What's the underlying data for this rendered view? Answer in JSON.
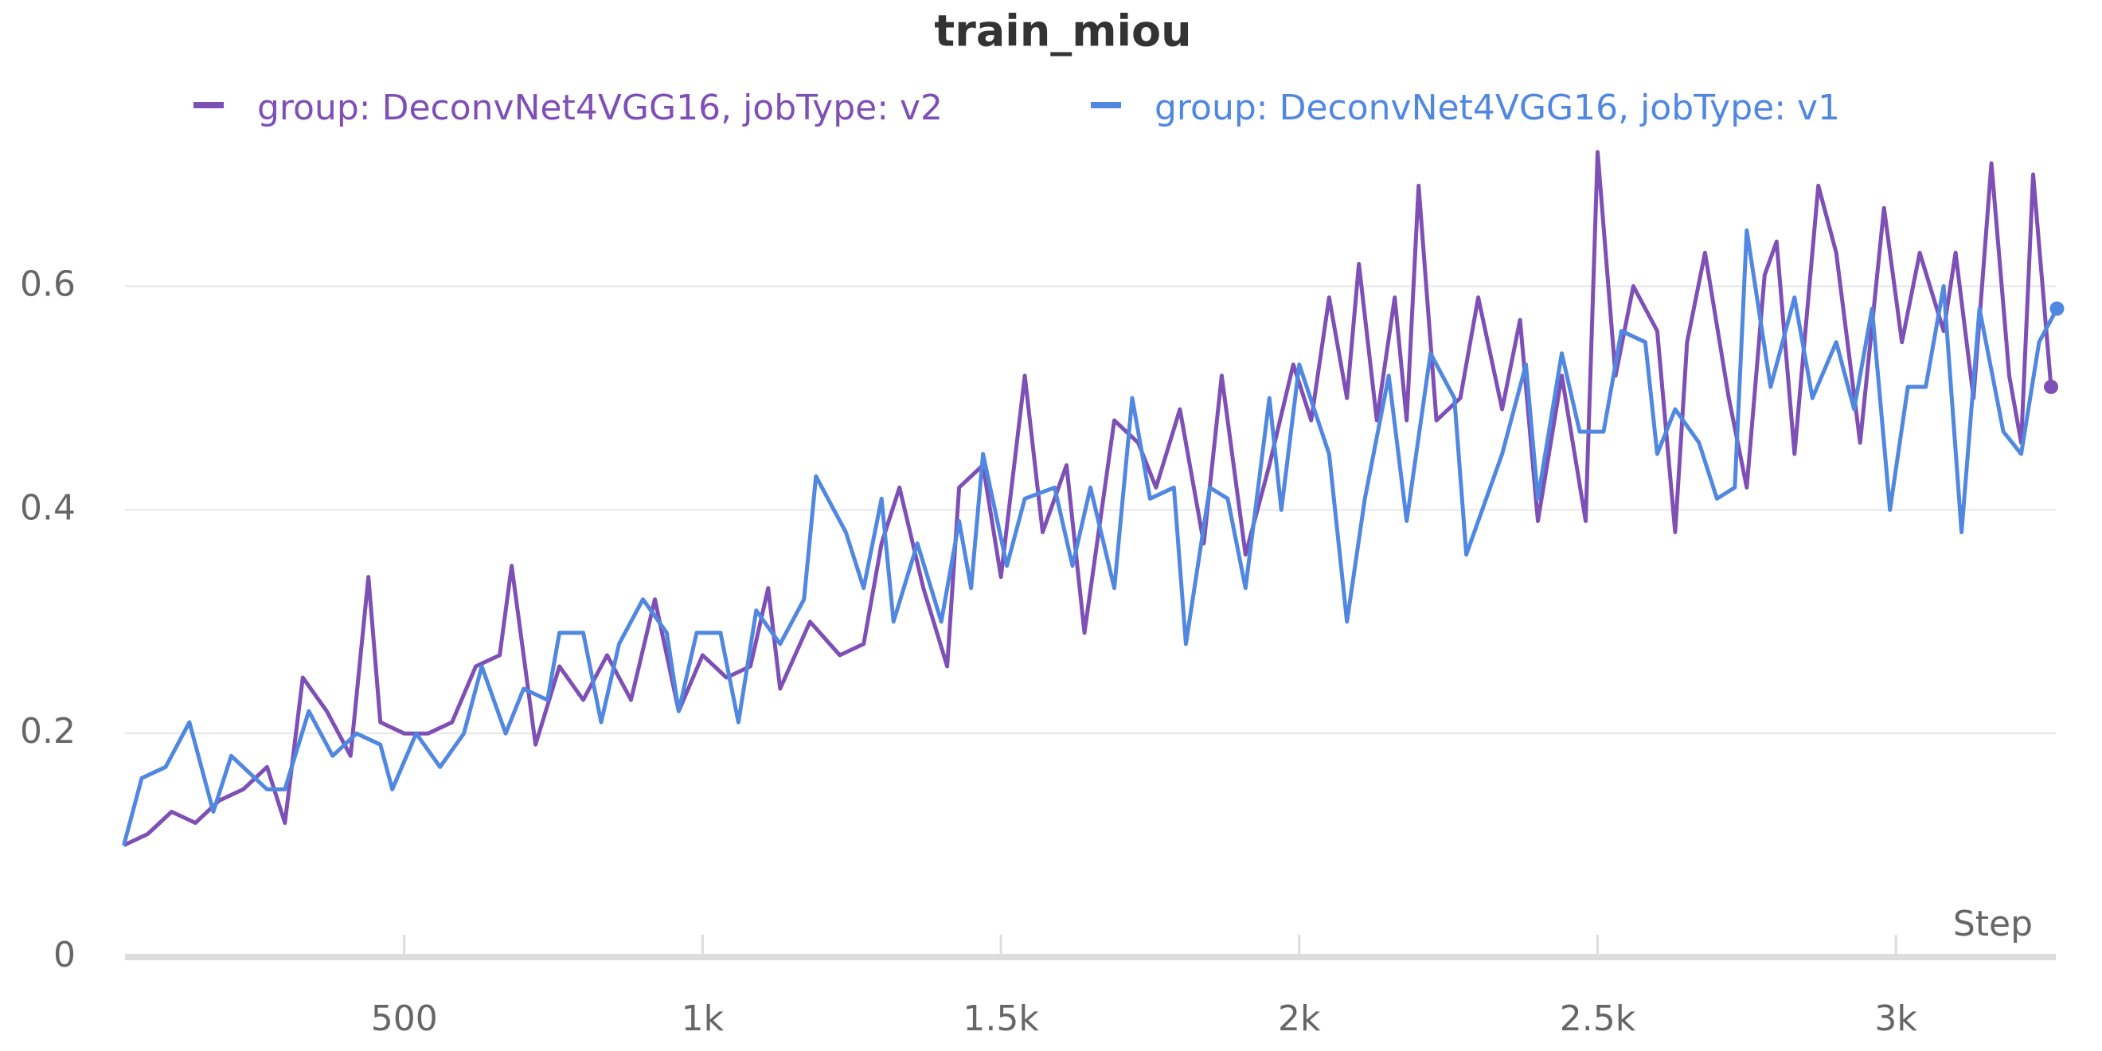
{
  "chart_data": {
    "type": "line",
    "title": "train_miou",
    "x_label": "Step",
    "xlim": [
      32,
      3268
    ],
    "ylim": [
      0,
      0.73
    ],
    "xticks": [
      500,
      {
        "value": 1000,
        "label": "1k"
      },
      {
        "value": 1500,
        "label": "1.5k"
      },
      {
        "value": 2000,
        "label": "2k"
      },
      {
        "value": 2500,
        "label": "2.5k"
      },
      {
        "value": 3000,
        "label": "3k"
      }
    ],
    "yticks": [
      0,
      0.2,
      0.4,
      0.6
    ],
    "grid": true,
    "series": [
      {
        "name": "group: DeconvNet4VGG16, jobType: v2",
        "color": "#7e4fb5",
        "x": [
          30,
          70,
          110,
          150,
          190,
          230,
          270,
          300,
          330,
          370,
          410,
          440,
          460,
          500,
          540,
          580,
          620,
          660,
          680,
          720,
          760,
          800,
          840,
          880,
          920,
          960,
          1000,
          1040,
          1080,
          1110,
          1130,
          1180,
          1230,
          1270,
          1300,
          1330,
          1370,
          1410,
          1430,
          1470,
          1500,
          1540,
          1570,
          1610,
          1640,
          1690,
          1730,
          1760,
          1800,
          1840,
          1870,
          1910,
          1950,
          1990,
          2020,
          2050,
          2080,
          2100,
          2130,
          2160,
          2180,
          2200,
          2230,
          2270,
          2300,
          2340,
          2370,
          2400,
          2440,
          2480,
          2500,
          2530,
          2560,
          2600,
          2630,
          2650,
          2680,
          2720,
          2750,
          2780,
          2800,
          2830,
          2870,
          2900,
          2940,
          2980,
          3010,
          3040,
          3080,
          3100,
          3130,
          3160,
          3190,
          3210,
          3230,
          3260
        ],
        "values": [
          0.1,
          0.11,
          0.13,
          0.12,
          0.14,
          0.15,
          0.17,
          0.12,
          0.25,
          0.22,
          0.18,
          0.34,
          0.21,
          0.2,
          0.2,
          0.21,
          0.26,
          0.27,
          0.35,
          0.19,
          0.26,
          0.23,
          0.27,
          0.23,
          0.32,
          0.22,
          0.27,
          0.25,
          0.26,
          0.33,
          0.24,
          0.3,
          0.27,
          0.28,
          0.37,
          0.42,
          0.33,
          0.26,
          0.42,
          0.44,
          0.34,
          0.52,
          0.38,
          0.44,
          0.29,
          0.48,
          0.46,
          0.42,
          0.49,
          0.37,
          0.52,
          0.36,
          0.44,
          0.53,
          0.48,
          0.59,
          0.5,
          0.62,
          0.48,
          0.59,
          0.48,
          0.69,
          0.48,
          0.5,
          0.59,
          0.49,
          0.57,
          0.39,
          0.52,
          0.39,
          0.72,
          0.52,
          0.6,
          0.56,
          0.38,
          0.55,
          0.63,
          0.5,
          0.42,
          0.61,
          0.64,
          0.45,
          0.69,
          0.63,
          0.46,
          0.67,
          0.55,
          0.63,
          0.56,
          0.63,
          0.5,
          0.71,
          0.52,
          0.46,
          0.7,
          0.51
        ]
      },
      {
        "name": "group: DeconvNet4VGG16, jobType: v1",
        "color": "#5087e0",
        "x": [
          30,
          60,
          100,
          140,
          180,
          210,
          270,
          300,
          340,
          380,
          420,
          460,
          480,
          520,
          560,
          600,
          630,
          670,
          700,
          740,
          760,
          800,
          830,
          860,
          900,
          940,
          960,
          990,
          1030,
          1060,
          1090,
          1130,
          1170,
          1190,
          1240,
          1270,
          1300,
          1320,
          1360,
          1400,
          1430,
          1450,
          1470,
          1510,
          1540,
          1590,
          1620,
          1650,
          1690,
          1720,
          1750,
          1790,
          1810,
          1850,
          1880,
          1910,
          1950,
          1970,
          2000,
          2050,
          2080,
          2110,
          2150,
          2180,
          2220,
          2260,
          2280,
          2340,
          2380,
          2400,
          2440,
          2470,
          2510,
          2540,
          2580,
          2600,
          2630,
          2670,
          2700,
          2730,
          2750,
          2790,
          2830,
          2860,
          2900,
          2930,
          2960,
          2990,
          3020,
          3050,
          3080,
          3110,
          3140,
          3180,
          3210,
          3240,
          3270
        ],
        "values": [
          0.1,
          0.16,
          0.17,
          0.21,
          0.13,
          0.18,
          0.15,
          0.15,
          0.22,
          0.18,
          0.2,
          0.19,
          0.15,
          0.2,
          0.17,
          0.2,
          0.26,
          0.2,
          0.24,
          0.23,
          0.29,
          0.29,
          0.21,
          0.28,
          0.32,
          0.29,
          0.22,
          0.29,
          0.29,
          0.21,
          0.31,
          0.28,
          0.32,
          0.43,
          0.38,
          0.33,
          0.41,
          0.3,
          0.37,
          0.3,
          0.39,
          0.33,
          0.45,
          0.35,
          0.41,
          0.42,
          0.35,
          0.42,
          0.33,
          0.5,
          0.41,
          0.42,
          0.28,
          0.42,
          0.41,
          0.33,
          0.5,
          0.4,
          0.53,
          0.45,
          0.3,
          0.41,
          0.52,
          0.39,
          0.54,
          0.5,
          0.36,
          0.45,
          0.53,
          0.41,
          0.54,
          0.47,
          0.47,
          0.56,
          0.55,
          0.45,
          0.49,
          0.46,
          0.41,
          0.42,
          0.65,
          0.51,
          0.59,
          0.5,
          0.55,
          0.49,
          0.58,
          0.4,
          0.51,
          0.51,
          0.6,
          0.38,
          0.58,
          0.47,
          0.45,
          0.55,
          0.58
        ]
      }
    ]
  }
}
